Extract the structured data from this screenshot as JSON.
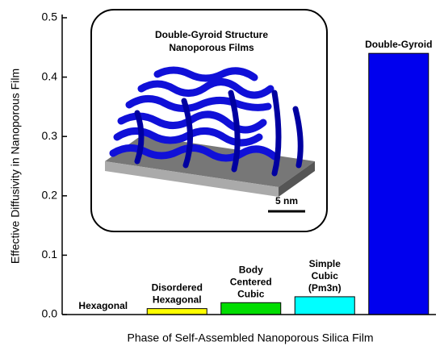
{
  "chart_data": {
    "type": "bar",
    "ylabel": "Effective Diffusivity in Nanoporous Film",
    "xlabel": "Phase of Self-Assembled Nanoporous Silica Film",
    "categories": [
      "Hexagonal",
      "Disordered Hexagonal",
      "Body Centered Cubic",
      "Simple Cubic (Pm3n)",
      "Double-Gyroid"
    ],
    "values": [
      0,
      0.01,
      0.02,
      0.03,
      0.44
    ],
    "colors": [
      "#ffffff",
      "#ffff00",
      "#00dd00",
      "#00ffff",
      "#0000ee"
    ],
    "ylim": [
      0,
      0.5
    ],
    "yticks": [
      {
        "value": 0,
        "label": "0.0"
      },
      0.1,
      0.2,
      0.3,
      0.4,
      0.5
    ],
    "inset": {
      "title": [
        "Double-Gyroid Structure",
        "Nanoporous Films"
      ],
      "scale_bar": "5 nm"
    }
  }
}
